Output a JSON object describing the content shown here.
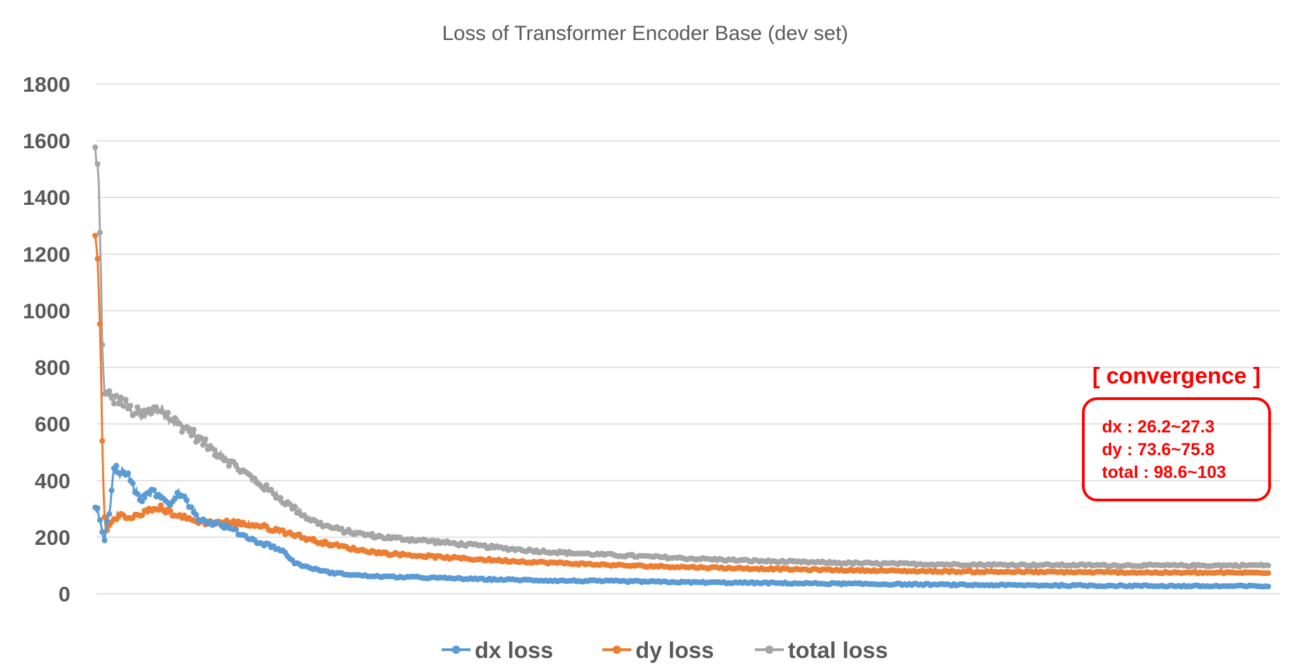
{
  "chart_data": {
    "type": "line",
    "title": "Loss of Transformer Encoder Base (dev set)",
    "xlabel": "",
    "ylabel": "",
    "ylim": [
      0,
      1800
    ],
    "yticks": [
      0,
      200,
      400,
      600,
      800,
      1000,
      1200,
      1400,
      1600,
      1800
    ],
    "grid": true,
    "legend_position": "bottom",
    "x_range": [
      0,
      4000
    ],
    "series": [
      {
        "name": "dx loss",
        "color": "#5b9bd5",
        "x": [
          0,
          10,
          20,
          30,
          40,
          50,
          60,
          70,
          80,
          90,
          100,
          120,
          140,
          160,
          180,
          200,
          220,
          240,
          260,
          280,
          300,
          330,
          360,
          400,
          440,
          480,
          520,
          560,
          600,
          640,
          680,
          720,
          760,
          800,
          850,
          900,
          950,
          1000,
          1100,
          1200,
          1300,
          1400,
          1500,
          1600,
          1800,
          2000,
          2200,
          2400,
          2600,
          2800,
          3000,
          3200,
          3400,
          3600,
          3800,
          4000
        ],
        "values": [
          310,
          290,
          250,
          180,
          250,
          300,
          420,
          450,
          420,
          440,
          430,
          400,
          360,
          330,
          350,
          360,
          340,
          330,
          320,
          360,
          350,
          300,
          260,
          250,
          240,
          220,
          200,
          180,
          170,
          150,
          110,
          95,
          85,
          75,
          70,
          65,
          62,
          60,
          58,
          55,
          52,
          50,
          48,
          46,
          44,
          41,
          39,
          37,
          35,
          33,
          31,
          30,
          29,
          28,
          27,
          27
        ]
      },
      {
        "name": "dy loss",
        "color": "#ed7d31",
        "x": [
          0,
          5,
          10,
          15,
          20,
          25,
          30,
          35,
          40,
          45,
          50,
          60,
          70,
          80,
          100,
          120,
          140,
          160,
          180,
          200,
          220,
          240,
          260,
          280,
          300,
          330,
          360,
          400,
          440,
          480,
          520,
          560,
          600,
          640,
          680,
          720,
          760,
          800,
          850,
          900,
          950,
          1000,
          1100,
          1200,
          1300,
          1400,
          1500,
          1600,
          1800,
          2000,
          2200,
          2400,
          2600,
          2800,
          3000,
          3200,
          3400,
          3600,
          3800,
          4000
        ],
        "values": [
          1240,
          1220,
          1150,
          1000,
          760,
          480,
          300,
          230,
          220,
          240,
          250,
          260,
          270,
          280,
          270,
          265,
          275,
          285,
          290,
          300,
          305,
          295,
          285,
          280,
          270,
          260,
          255,
          250,
          255,
          250,
          245,
          240,
          230,
          220,
          210,
          195,
          185,
          175,
          165,
          155,
          148,
          142,
          135,
          128,
          122,
          117,
          112,
          108,
          100,
          95,
          90,
          86,
          83,
          80,
          78,
          77,
          76,
          75,
          74,
          75
        ]
      },
      {
        "name": "total loss",
        "color": "#a5a5a5",
        "x": [
          0,
          5,
          10,
          15,
          20,
          25,
          30,
          35,
          40,
          45,
          50,
          60,
          70,
          80,
          100,
          120,
          140,
          160,
          180,
          200,
          220,
          240,
          260,
          280,
          300,
          330,
          360,
          400,
          440,
          480,
          520,
          560,
          600,
          640,
          680,
          720,
          760,
          800,
          850,
          900,
          950,
          1000,
          1100,
          1200,
          1300,
          1400,
          1500,
          1600,
          1800,
          2000,
          2200,
          2400,
          2600,
          2800,
          3000,
          3200,
          3400,
          3600,
          3800,
          4000
        ],
        "values": [
          1560,
          1540,
          1480,
          1300,
          1100,
          850,
          700,
          690,
          700,
          705,
          700,
          690,
          680,
          690,
          670,
          650,
          640,
          630,
          640,
          650,
          650,
          640,
          620,
          600,
          590,
          570,
          540,
          510,
          480,
          450,
          420,
          390,
          360,
          330,
          300,
          270,
          250,
          235,
          222,
          212,
          205,
          198,
          190,
          180,
          170,
          160,
          152,
          145,
          135,
          126,
          118,
          112,
          108,
          105,
          103,
          102,
          101,
          100,
          100,
          101
        ]
      }
    ]
  },
  "annotation": {
    "heading": "[ convergence ]",
    "lines": [
      "dx : 26.2~27.3",
      "dy : 73.6~75.8",
      "total : 98.6~103"
    ],
    "color": "#ff0000"
  }
}
